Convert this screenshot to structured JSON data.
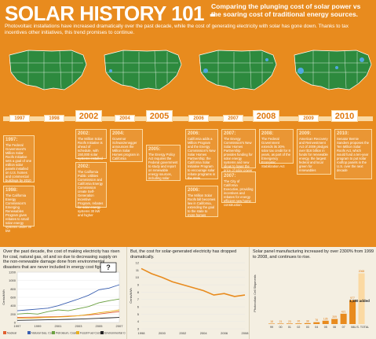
{
  "header": {
    "title": "SOLAR HISTORY 101 -",
    "subtitle": "Comparing the plunging cost of solar power vs the soaring cost of traditional energy sources.",
    "intro": "Photovoltaic installations have increased dramatically over the past decade, while the cost of generating electricity with solar has gone down. Thanks to tax incentives other initiatives, this trend promises to continue."
  },
  "timeline": {
    "years": [
      "1997",
      "1998",
      "2002",
      "2004",
      "2005",
      "2006",
      "2007",
      "2008",
      "2009",
      "2010"
    ],
    "events": [
      {
        "year": "1997:",
        "text": "The Federal Government's Million Solar Roofs Initiative sets a goal of one million solar panels installed on U.S. homes and commercial buildings by 2010"
      },
      {
        "year": "1998:",
        "text": "The California Energy Commission's Emerging Renewables Program gives rebates to small solar energy systems under 30 kW"
      },
      {
        "year": "2002:",
        "text": "The Million Solar Roofs Initiative is ahead of schedule, with 150,000 solar systems installed"
      },
      {
        "year": "2002:",
        "text": "The California Public Utilities Commission and California Energy Commission create Self-Generation Incentive Program, rebates for solar energy systems 30 kW and higher"
      },
      {
        "year": "2004:",
        "text": "Governor Schwarzenegger announces the Million Solar Homes program in California"
      },
      {
        "year": "2005:",
        "text": "The Energy Policy Act requires the Federal government to study and report on renewable energy sources, including solar"
      },
      {
        "year": "2006:",
        "text": "California adds a Million Program and the Energy Commission's New Solar Homes Partnership; the California Solar Initiative Program to encourage solar rebate programs in the state"
      },
      {
        "year": "2006:",
        "text": "The Million Solar Roofs bill becomes law in California, extending the goal to the state to more homes"
      },
      {
        "year": "2007:",
        "text": "The Energy Commission's New Solar Homes Partnership provides funding for solar energy systems and new ideas to lower the price of solar power"
      },
      {
        "year": "2007:",
        "text": "The City of California Executive, providing incentives and rebates for energy efficient new home construction"
      },
      {
        "year": "2008:",
        "text": "The Federal Government extends its 30% solar tax credit for 8 years, as part of the Emergency Economic Stabilization Act"
      },
      {
        "year": "2009:",
        "text": "American Recovery and Reinvestment Act of 2009 pledges over $16 billion in funds for renewable energy. the largest federal and local green for renewables"
      },
      {
        "year": "2010:",
        "text": "Senator Bernie Sanders proposes the Ten Million Solar Roofs Act, which would fund a ten-year program to put solar rooftop panels in the U.S. over the next decade"
      }
    ]
  },
  "panels": {
    "left_text": "Over the past decade, the cost of making electricity has risen for coal, natural gas, oil and so due to decreasing supply on the non-renewable damage done from environmental disasters that are never included in energy cost figures.",
    "mid_text": "But, the cost for solar-generated electricity has dropped dramatically.",
    "right_text": "Solar panel manufacturing increased by over 2300% from 1999 to 2008, and continues to rise."
  },
  "chart_data": [
    {
      "type": "line",
      "title": "",
      "xlabel": "",
      "ylabel": "Cents/kWh",
      "x": [
        "1997",
        "1998",
        "1999",
        "2000",
        "2001",
        "2002",
        "2003",
        "2004",
        "2005",
        "2006",
        "2007"
      ],
      "ylim": [
        0,
        1200
      ],
      "yticks": [
        "1200",
        "1000",
        "800",
        "600",
        "400",
        "200",
        "0"
      ],
      "series": [
        {
          "name": "Nuclear",
          "color": "#e06030",
          "values": [
            120,
            125,
            130,
            135,
            140,
            150,
            160,
            180,
            200,
            230,
            260
          ]
        },
        {
          "name": "Natural Gas, Coal",
          "color": "#3a5fb0",
          "values": [
            280,
            300,
            320,
            340,
            400,
            480,
            560,
            650,
            780,
            820,
            900
          ]
        },
        {
          "name": "Petroleum, Coal",
          "color": "#6aa040",
          "values": [
            200,
            220,
            200,
            260,
            300,
            280,
            330,
            380,
            470,
            520,
            560
          ]
        },
        {
          "name": "Fossil Fuel Cost",
          "color": "#e8b020",
          "values": [
            100,
            100,
            110,
            120,
            130,
            140,
            160,
            190,
            230,
            260,
            300
          ]
        },
        {
          "name": "Environmental Cost",
          "color": "#222222",
          "values": [
            50,
            55,
            60,
            65,
            70,
            75,
            80,
            90,
            100,
            110,
            120
          ]
        }
      ]
    },
    {
      "type": "line",
      "title": "",
      "xlabel": "",
      "ylabel": "Cents/kWh",
      "x": [
        "1998",
        "1999",
        "2000",
        "2001",
        "2002",
        "2003",
        "2004",
        "2005",
        "2006",
        "2007",
        "2008"
      ],
      "ylim": [
        0,
        12
      ],
      "yticks": [
        "12",
        "11",
        "10",
        "9",
        "8",
        "7",
        "6",
        "5",
        "4",
        "3"
      ],
      "series": [
        {
          "name": "",
          "color": "#e88b1e",
          "values": [
            11.2,
            10.5,
            10.0,
            9.4,
            9.0,
            8.6,
            8.2,
            7.6,
            7.8,
            7.4,
            7.6
          ]
        }
      ]
    },
    {
      "type": "bar",
      "title": "",
      "xlabel": "",
      "ylabel": "Photovoltaic Cell Shipments",
      "categories": [
        "99",
        "00",
        "01",
        "02",
        "03",
        "04",
        "05",
        "06",
        "07",
        "08",
        "U.S. TOTAL"
      ],
      "values": [
        18,
        21,
        23,
        26,
        38,
        76,
        135,
        209,
        421,
        977,
        2068
      ],
      "ylim": [
        0,
        2500
      ],
      "annotation": "1,180 added",
      "footnote": "U.S. TOTAL"
    }
  ]
}
